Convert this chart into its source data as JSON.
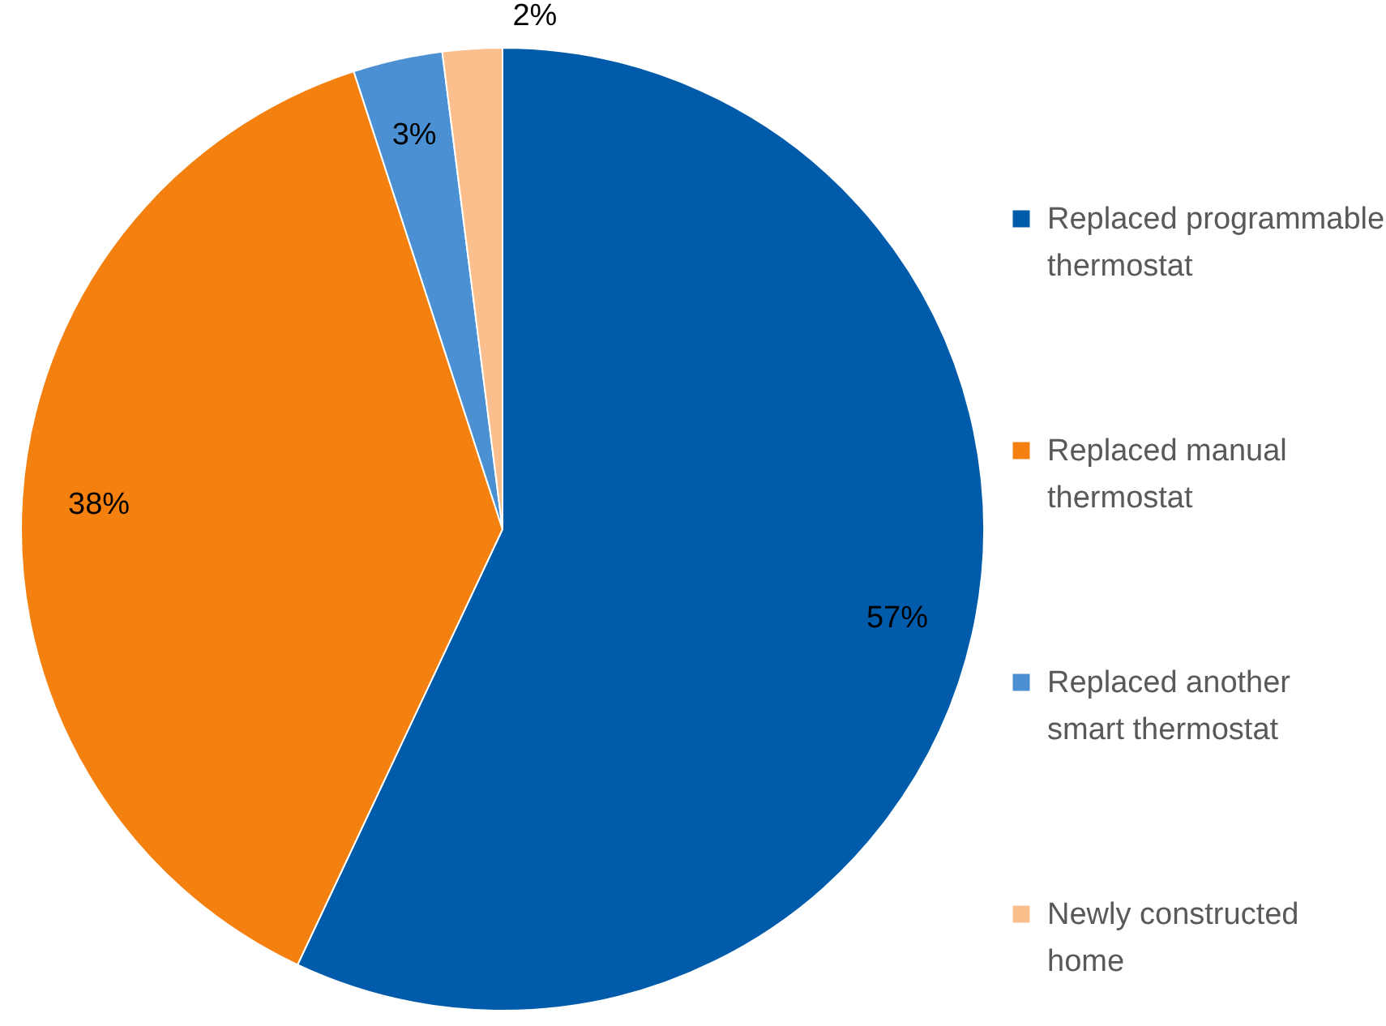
{
  "chart_data": {
    "type": "pie",
    "categories": [
      "Replaced programmable thermostat",
      "Replaced manual thermostat",
      "Replaced another smart thermostat",
      "Newly constructed home"
    ],
    "values": [
      57,
      38,
      3,
      2
    ],
    "colors": [
      "#005bab",
      "#f3800f",
      "#4a90d2",
      "#fbbf8e"
    ],
    "value_labels": [
      "57%",
      "38%",
      "3%",
      "2%"
    ],
    "legend": "right"
  }
}
